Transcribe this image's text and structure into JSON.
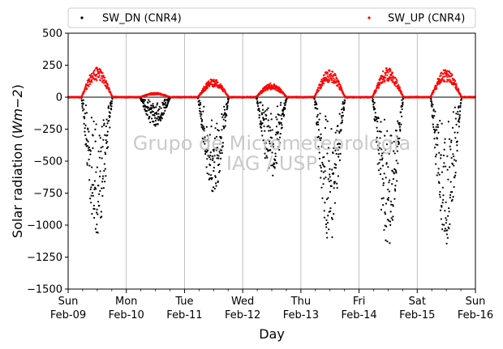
{
  "chart_data": {
    "type": "scatter",
    "title": "",
    "xlabel": "Day",
    "ylabel_text": "Solar radiation (",
    "ylabel_unit": "Wm",
    "ylabel_exp": "−2",
    "ylabel_close": ")",
    "ylim": [
      -1500,
      500
    ],
    "yticks": [
      500,
      250,
      0,
      -250,
      -500,
      -750,
      -1000,
      -1250,
      -1500
    ],
    "ytick_labels": [
      "500",
      "250",
      "0",
      "−250",
      "−500",
      "−750",
      "−1000",
      "−1250",
      "−1500"
    ],
    "xlim": [
      "2014-02-09",
      "2014-02-16"
    ],
    "xticks": [
      {
        "day": "Sun",
        "date": "Feb-09"
      },
      {
        "day": "Mon",
        "date": "Feb-10"
      },
      {
        "day": "Tue",
        "date": "Feb-11"
      },
      {
        "day": "Wed",
        "date": "Feb-12"
      },
      {
        "day": "Thu",
        "date": "Feb-13"
      },
      {
        "day": "Fri",
        "date": "Feb-14"
      },
      {
        "day": "Sat",
        "date": "Feb-15"
      },
      {
        "day": "Sun",
        "date": "Feb-16"
      }
    ],
    "grid_x": true,
    "grid_y": false,
    "legend_position": "top",
    "watermark_line1": "Grupo de Micrometeorologia",
    "watermark_line2": "IAG / USP",
    "series": [
      {
        "name": "SW_DN (CNR4)",
        "color": "#000000",
        "description": "Downward shortwave radiation, negative sign convention",
        "daily_min": [
          -1080,
          -230,
          -770,
          -620,
          -1150,
          -1170,
          -1150
        ]
      },
      {
        "name": "SW_UP (CNR4)",
        "color": "#ff0000",
        "description": "Upward (reflected) shortwave radiation",
        "daily_max": [
          235,
          35,
          145,
          110,
          215,
          230,
          220
        ]
      }
    ]
  }
}
